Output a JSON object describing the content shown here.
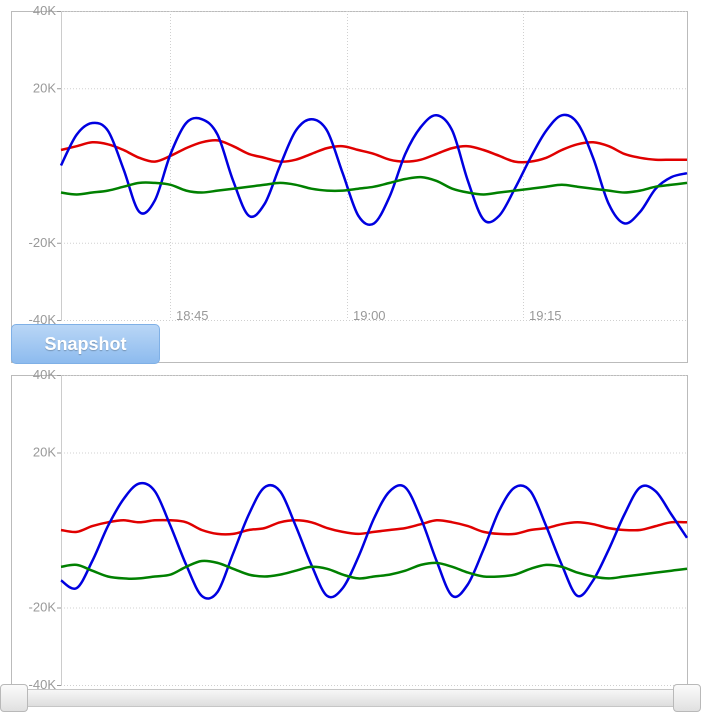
{
  "snapshot_button": {
    "label": "Snapshot"
  },
  "chart_data": [
    {
      "type": "line",
      "x_ticks": [
        "18:45",
        "19:00",
        "19:15"
      ],
      "y_ticks": [
        "40K",
        "20K",
        "-20K",
        "-40K"
      ],
      "ylim": [
        -40000,
        40000
      ],
      "grid": true,
      "series": [
        {
          "color": "#e00000",
          "x": [
            0,
            1,
            2,
            3,
            4,
            5,
            6,
            7,
            8,
            9,
            10,
            11,
            12,
            13,
            14,
            15,
            16,
            17,
            18,
            19,
            20,
            21,
            22,
            23,
            24,
            25,
            26,
            27,
            28,
            29,
            30,
            31,
            32,
            33,
            34,
            35,
            36,
            37,
            38,
            39,
            40
          ],
          "y": [
            4000,
            5000,
            6000,
            5500,
            4000,
            2000,
            1000,
            2500,
            4500,
            6000,
            6500,
            5000,
            3000,
            2000,
            1000,
            1500,
            3000,
            4500,
            5000,
            4000,
            3000,
            1500,
            1000,
            1500,
            3000,
            4500,
            5000,
            4000,
            2500,
            1000,
            1000,
            2000,
            4000,
            5500,
            6000,
            5000,
            3000,
            2000,
            1500,
            1500,
            1500
          ]
        },
        {
          "color": "#0000e0",
          "x": [
            0,
            1,
            2,
            3,
            4,
            5,
            6,
            7,
            8,
            9,
            10,
            11,
            12,
            13,
            14,
            15,
            16,
            17,
            18,
            19,
            20,
            21,
            22,
            23,
            24,
            25,
            26,
            27,
            28,
            29,
            30,
            31,
            32,
            33,
            34,
            35,
            36,
            37,
            38,
            39,
            40
          ],
          "y": [
            0,
            8000,
            11000,
            9000,
            -1000,
            -12000,
            -9000,
            3000,
            11000,
            12000,
            8000,
            -4000,
            -13000,
            -10000,
            0,
            9000,
            12000,
            9000,
            -2000,
            -13000,
            -15000,
            -8000,
            3000,
            10000,
            13000,
            9000,
            -4000,
            -14000,
            -13000,
            -6000,
            2000,
            9000,
            13000,
            11000,
            2000,
            -10000,
            -15000,
            -12000,
            -6000,
            -3000,
            -2000
          ]
        },
        {
          "color": "#008000",
          "x": [
            0,
            1,
            2,
            3,
            4,
            5,
            6,
            7,
            8,
            9,
            10,
            11,
            12,
            13,
            14,
            15,
            16,
            17,
            18,
            19,
            20,
            21,
            22,
            23,
            24,
            25,
            26,
            27,
            28,
            29,
            30,
            31,
            32,
            33,
            34,
            35,
            36,
            37,
            38,
            39,
            40
          ],
          "y": [
            -7000,
            -7500,
            -7000,
            -6500,
            -5500,
            -4500,
            -4500,
            -5000,
            -6500,
            -7000,
            -6500,
            -6000,
            -5500,
            -5000,
            -4500,
            -5000,
            -6000,
            -6500,
            -6500,
            -6000,
            -5500,
            -4500,
            -3500,
            -3000,
            -4000,
            -6000,
            -7000,
            -7500,
            -7000,
            -6500,
            -6000,
            -5500,
            -5000,
            -5500,
            -6000,
            -6500,
            -7000,
            -6500,
            -5500,
            -5000,
            -4500
          ]
        }
      ]
    },
    {
      "type": "line",
      "y_ticks": [
        "40K",
        "20K",
        "-20K",
        "-40K"
      ],
      "ylim": [
        -40000,
        40000
      ],
      "grid": true,
      "series": [
        {
          "color": "#e00000",
          "x": [
            0,
            1,
            2,
            3,
            4,
            5,
            6,
            7,
            8,
            9,
            10,
            11,
            12,
            13,
            14,
            15,
            16,
            17,
            18,
            19,
            20,
            21,
            22,
            23,
            24,
            25,
            26,
            27,
            28,
            29,
            30,
            31,
            32,
            33,
            34,
            35,
            36,
            37,
            38,
            39,
            40
          ],
          "y": [
            0,
            -500,
            1000,
            2000,
            2500,
            2000,
            2500,
            2500,
            2000,
            0,
            -1000,
            -1000,
            0,
            500,
            2000,
            2500,
            2000,
            500,
            -500,
            -1000,
            -500,
            0,
            500,
            1500,
            2500,
            2000,
            1000,
            -500,
            -1000,
            -1000,
            0,
            500,
            1500,
            2000,
            1500,
            500,
            0,
            0,
            1000,
            2000,
            2000
          ]
        },
        {
          "color": "#0000e0",
          "x": [
            0,
            1,
            2,
            3,
            4,
            5,
            6,
            7,
            8,
            9,
            10,
            11,
            12,
            13,
            14,
            15,
            16,
            17,
            18,
            19,
            20,
            21,
            22,
            23,
            24,
            25,
            26,
            27,
            28,
            29,
            30,
            31,
            32,
            33,
            34,
            35,
            36,
            37,
            38,
            39,
            40
          ],
          "y": [
            -13000,
            -15000,
            -8000,
            1000,
            8000,
            12000,
            10000,
            1000,
            -9000,
            -17000,
            -16000,
            -6000,
            4000,
            11000,
            10000,
            1000,
            -9000,
            -17000,
            -15000,
            -7000,
            3000,
            10000,
            11000,
            3000,
            -8000,
            -17000,
            -14000,
            -5000,
            5000,
            11000,
            10000,
            1000,
            -9000,
            -17000,
            -13000,
            -5000,
            4000,
            11000,
            10000,
            4000,
            -2000
          ]
        },
        {
          "color": "#008000",
          "x": [
            0,
            1,
            2,
            3,
            4,
            5,
            6,
            7,
            8,
            9,
            10,
            11,
            12,
            13,
            14,
            15,
            16,
            17,
            18,
            19,
            20,
            21,
            22,
            23,
            24,
            25,
            26,
            27,
            28,
            29,
            30,
            31,
            32,
            33,
            34,
            35,
            36,
            37,
            38,
            39,
            40
          ],
          "y": [
            -9500,
            -9000,
            -10500,
            -12000,
            -12500,
            -12500,
            -12000,
            -11500,
            -9500,
            -8000,
            -8500,
            -10000,
            -11500,
            -12000,
            -11500,
            -10500,
            -9500,
            -10000,
            -11500,
            -12500,
            -12000,
            -11500,
            -10500,
            -9000,
            -8500,
            -9500,
            -11000,
            -12000,
            -12000,
            -11500,
            -10000,
            -9000,
            -9500,
            -11000,
            -12000,
            -12500,
            -12000,
            -11500,
            -11000,
            -10500,
            -10000
          ]
        }
      ]
    }
  ]
}
